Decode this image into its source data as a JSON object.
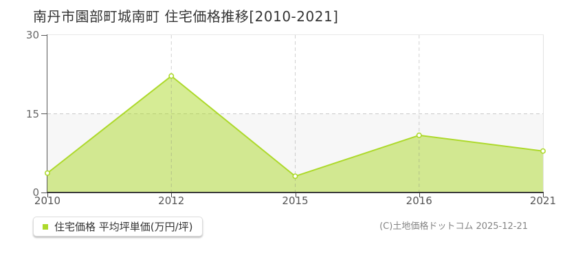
{
  "title": "南丹市園部町城南町 住宅価格推移[2010-2021]",
  "chart_data": {
    "type": "area",
    "title": "南丹市園部町城南町 住宅価格推移[2010-2021]",
    "categories": [
      "2010",
      "2012",
      "2015",
      "2016",
      "2021"
    ],
    "series": [
      {
        "name": "住宅価格 平均坪単価(万円/坪)",
        "values": [
          3.7,
          22.2,
          3.1,
          10.9,
          7.9
        ]
      }
    ],
    "xlabel": "",
    "ylabel": "",
    "ylim": [
      0,
      30
    ],
    "yticks": [
      0,
      15,
      30
    ],
    "grid": true,
    "grid_style": "dashed",
    "legend_position": "bottom-left",
    "marker": "open-circle",
    "colors": {
      "accent": "#add92b",
      "area_fill": "rgba(173,217,43,0.5)",
      "band_low": "#f7f7f7",
      "band_high": "#ffffff",
      "gridline": "#c9c9c9",
      "axis": "#3a3a3a"
    }
  },
  "legend": {
    "label": "住宅価格 平均坪単価(万円/坪)"
  },
  "footer": {
    "copyright": "(C)土地価格ドットコム 2025-12-21"
  }
}
